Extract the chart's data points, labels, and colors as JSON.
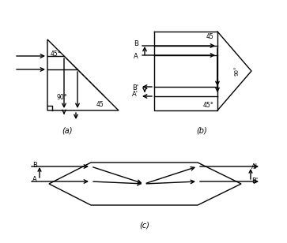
{
  "fig_width": 3.63,
  "fig_height": 3.08,
  "dpi": 100,
  "bg_color": "#ffffff",
  "label_a": "(a)",
  "label_b": "(b)",
  "label_c": "(c)"
}
